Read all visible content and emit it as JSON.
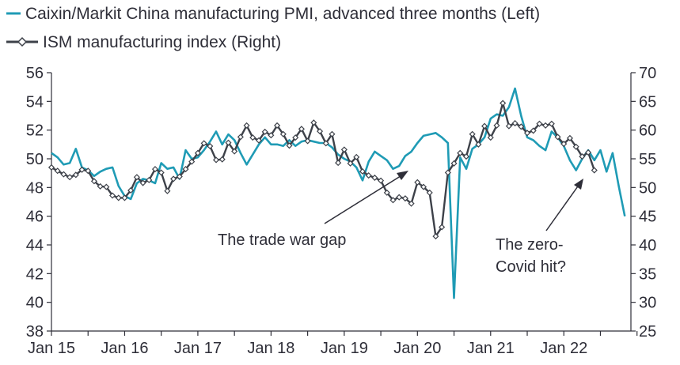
{
  "chart_data": {
    "type": "line",
    "legend": [
      {
        "name": "Caixin/Markit China manufacturing PMI, advanced three months (Left)",
        "color": "#1f9bb5",
        "marker": "none"
      },
      {
        "name": "ISM manufacturing index (Right)",
        "color": "#3d4149",
        "marker": "diamond"
      }
    ],
    "x_ticks": [
      "Jan 15",
      "Jan 16",
      "Jan 17",
      "Jan 18",
      "Jan 19",
      "Jan 20",
      "Jan 21",
      "Jan 22"
    ],
    "left_axis": {
      "ylim": [
        38,
        56
      ],
      "ticks": [
        "38",
        "40",
        "42",
        "44",
        "46",
        "48",
        "50",
        "52",
        "54",
        "56"
      ]
    },
    "right_axis": {
      "ylim": [
        25,
        70
      ],
      "ticks": [
        "25",
        "30",
        "35",
        "40",
        "45",
        "50",
        "55",
        "60",
        "65",
        "70"
      ]
    },
    "annotations": [
      {
        "lines": [
          "The trade war gap"
        ]
      },
      {
        "lines": [
          "The zero-",
          "Covid hit?"
        ]
      }
    ],
    "series": [
      {
        "name": "Caixin/Markit China manufacturing PMI, advanced three months (Left)",
        "axis": "left",
        "start": "2015-01",
        "values": [
          50.4,
          50.1,
          49.6,
          49.7,
          50.7,
          49.4,
          49.2,
          48.8,
          49.1,
          49.3,
          49.4,
          48.1,
          47.4,
          47.2,
          48.3,
          48.6,
          48.5,
          48.3,
          49.7,
          49.3,
          49.4,
          48.6,
          50.6,
          50.0,
          50.1,
          50.6,
          51.2,
          51.9,
          51.0,
          51.7,
          51.3,
          50.4,
          49.6,
          50.3,
          51.0,
          51.5,
          51.0,
          51.0,
          50.9,
          51.3,
          50.9,
          51.2,
          51.3,
          51.2,
          51.1,
          51.1,
          50.8,
          50.3,
          50.0,
          49.8,
          49.4,
          48.5,
          49.8,
          50.5,
          50.2,
          49.9,
          49.3,
          49.5,
          50.2,
          50.5,
          51.1,
          51.6,
          51.7,
          51.8,
          51.5,
          51.1,
          40.3,
          50.1,
          49.3,
          50.7,
          51.0,
          51.5,
          52.8,
          53.1,
          53.0,
          53.6,
          54.9,
          53.0,
          51.5,
          51.3,
          50.9,
          50.6,
          51.9,
          51.5,
          50.9,
          49.9,
          49.2,
          50.0,
          50.6,
          49.9,
          50.6,
          49.1,
          50.4,
          48.1,
          46.0
        ]
      },
      {
        "name": "ISM manufacturing index (Right)",
        "axis": "right",
        "start": "2015-01",
        "values": [
          53.5,
          52.9,
          52.3,
          51.8,
          52.2,
          53.1,
          52.9,
          51.1,
          50.2,
          50.1,
          48.6,
          48.2,
          48.2,
          49.5,
          51.8,
          50.8,
          51.3,
          53.2,
          52.6,
          49.4,
          51.5,
          51.9,
          53.2,
          54.5,
          56.0,
          57.7,
          57.2,
          54.8,
          54.9,
          57.8,
          56.3,
          58.8,
          60.8,
          58.7,
          58.2,
          59.7,
          59.1,
          60.8,
          59.3,
          57.3,
          58.7,
          60.2,
          58.1,
          61.3,
          59.8,
          57.7,
          59.3,
          54.3,
          56.6,
          54.2,
          55.3,
          52.8,
          52.1,
          51.7,
          51.2,
          49.1,
          47.8,
          48.3,
          48.1,
          47.2,
          50.9,
          50.1,
          49.1,
          41.5,
          43.1,
          52.6,
          54.2,
          56.0,
          55.4,
          59.3,
          57.5,
          60.7,
          58.7,
          60.8,
          64.7,
          60.7,
          61.2,
          60.6,
          59.5,
          59.9,
          61.1,
          60.8,
          61.1,
          58.8,
          57.6,
          58.6,
          57.1,
          55.4,
          56.1,
          53.0
        ]
      }
    ]
  }
}
